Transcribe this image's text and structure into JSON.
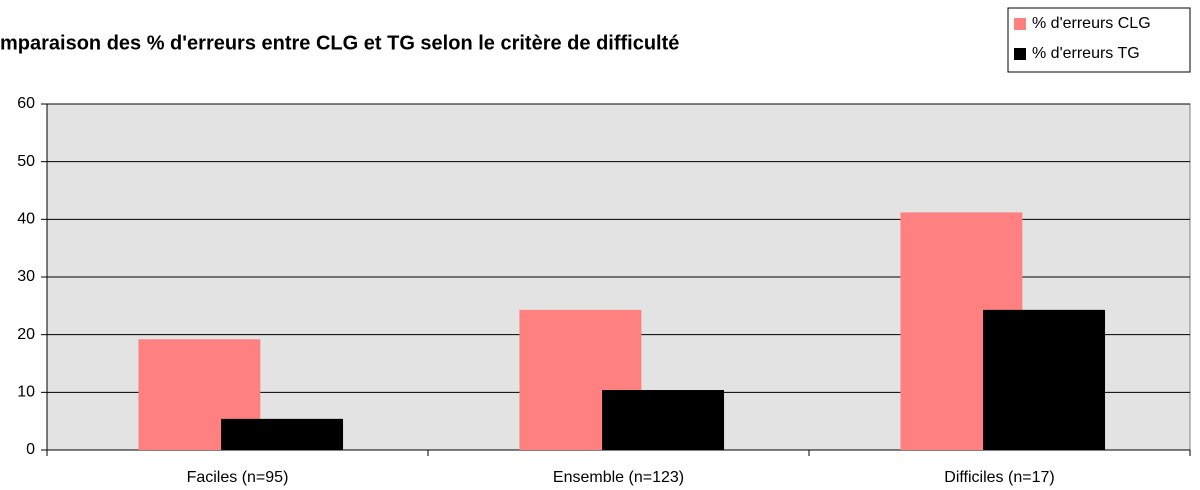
{
  "chart_data": {
    "type": "bar",
    "title": "mparaison des % d'erreurs entre CLG et TG selon le critère de difficulté",
    "categories": [
      "Faciles (n=95)",
      "Ensemble (n=123)",
      "Difficiles (n=17)"
    ],
    "series": [
      {
        "name": "% d'erreurs CLG",
        "color": "#ff8080",
        "values": [
          19.2,
          24.3,
          41.2
        ]
      },
      {
        "name": "% d'erreurs TG",
        "color": "#000000",
        "values": [
          5.4,
          10.4,
          24.3
        ]
      }
    ],
    "ylim": [
      0,
      60
    ],
    "yticks": [
      0,
      10,
      20,
      30,
      40,
      50,
      60
    ],
    "grid": true,
    "legend": "top-right"
  }
}
